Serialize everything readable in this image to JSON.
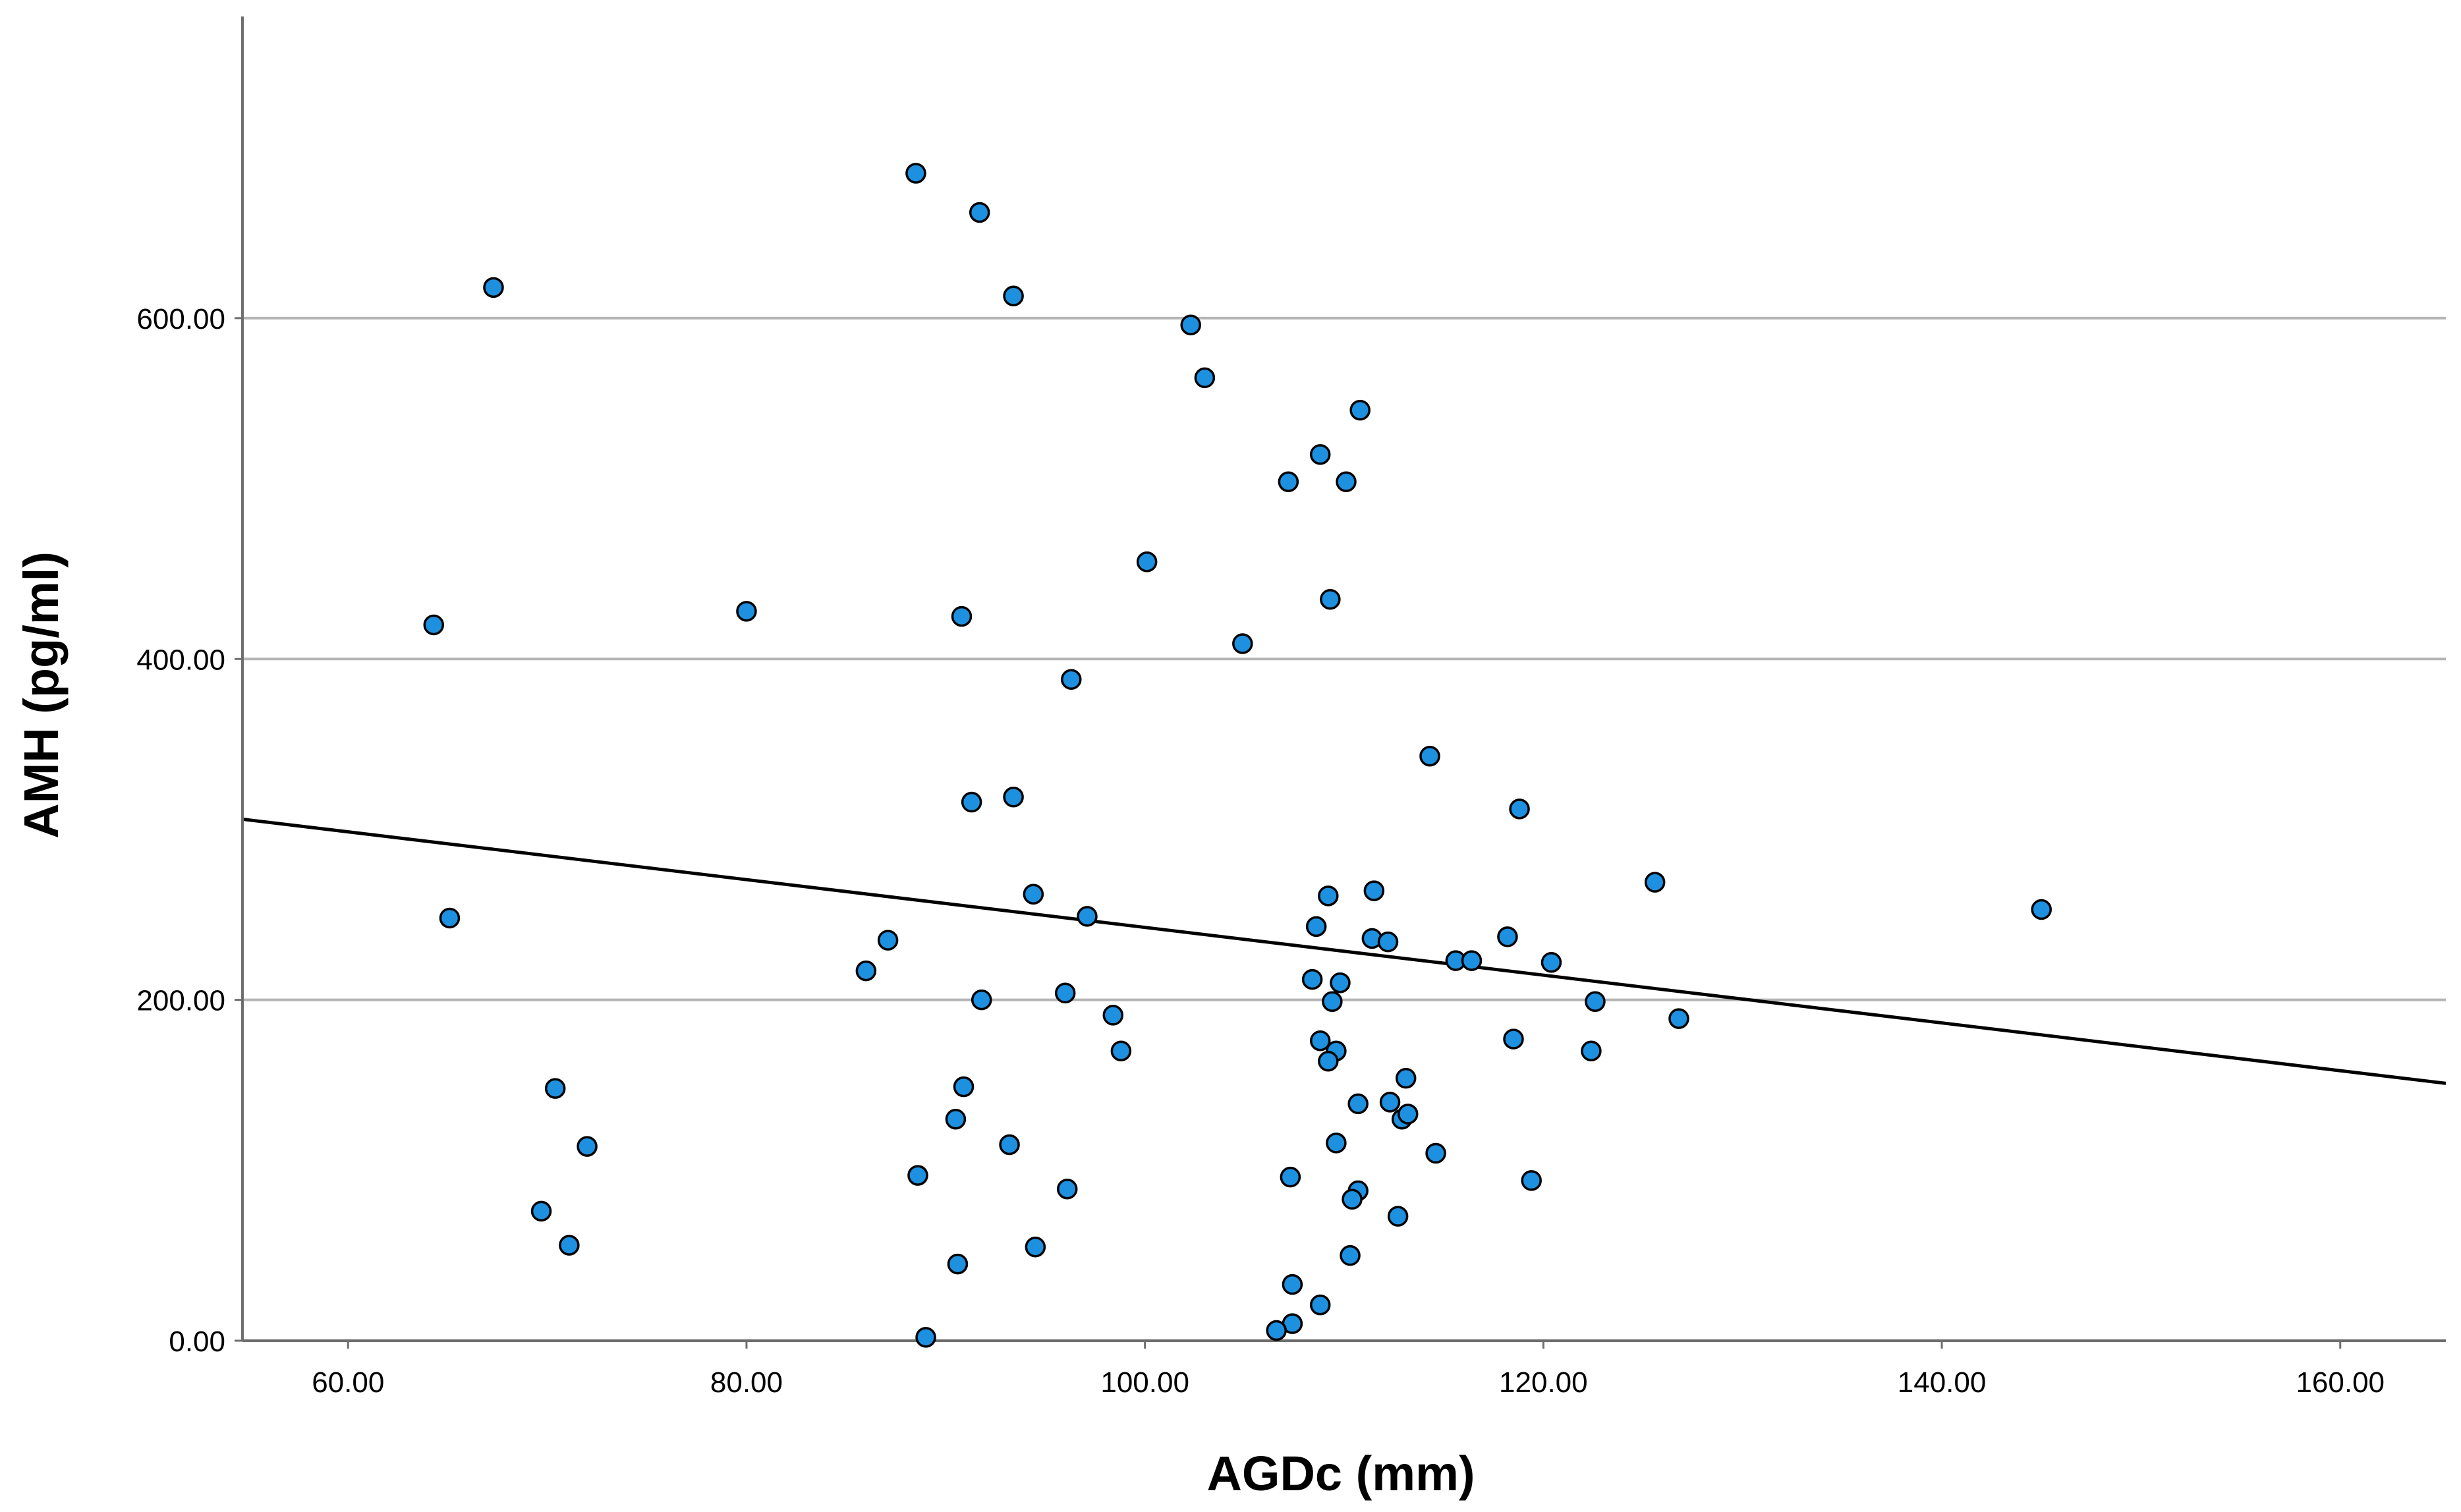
{
  "chart_data": {
    "type": "scatter",
    "title": "",
    "xlabel": "AGDc (mm)",
    "ylabel": "AMH (pg/ml)",
    "xlim": [
      54.7,
      165.3
    ],
    "ylim": [
      0,
      777
    ],
    "xticks": [
      60,
      80,
      100,
      120,
      140,
      160
    ],
    "xtick_labels": [
      "60.00",
      "80.00",
      "100.00",
      "120.00",
      "140.00",
      "160.00"
    ],
    "yticks": [
      0,
      200,
      400,
      600
    ],
    "ytick_labels": [
      "0.00",
      "200.00",
      "400.00",
      "600.00"
    ],
    "grid": "horizontal",
    "marker_color": "#1E90E0",
    "fit_line": {
      "type": "linear",
      "x": [
        54.7,
        165.3
      ],
      "y": [
        306,
        151
      ]
    },
    "series": [
      {
        "name": "AGDc vs AMH",
        "x": [
          88.5,
          91.7,
          93.4,
          67.3,
          102.3,
          103.0,
          110.8,
          108.8,
          107.2,
          110.1,
          100.1,
          109.3,
          64.3,
          80.0,
          90.8,
          104.9,
          96.3,
          114.3,
          91.3,
          93.4,
          118.8,
          65.1,
          94.4,
          97.1,
          87.1,
          86.0,
          91.8,
          96.0,
          98.4,
          98.8,
          125.6,
          145.0,
          109.2,
          111.5,
          108.6,
          111.4,
          112.2,
          109.8,
          108.4,
          109.4,
          118.2,
          115.6,
          116.4,
          120.4,
          122.6,
          126.8,
          118.5,
          122.4,
          108.8,
          109.6,
          109.2,
          113.1,
          112.3,
          110.7,
          112.9,
          113.2,
          109.6,
          114.6,
          119.4,
          107.3,
          110.7,
          110.4,
          112.7,
          110.3,
          107.4,
          107.4,
          108.8,
          106.6,
          89.0,
          90.9,
          90.5,
          93.2,
          88.6,
          96.1,
          94.5,
          90.6,
          70.4,
          72.0,
          69.7,
          71.1
        ],
        "y": [
          685,
          662,
          613,
          618,
          596,
          565,
          546,
          520,
          504,
          504,
          457,
          435,
          420,
          428,
          425,
          409,
          388,
          343,
          316,
          319,
          312,
          248,
          262,
          249,
          235,
          217,
          200,
          204,
          191,
          170,
          269,
          253,
          261,
          264,
          243,
          236,
          234,
          210,
          212,
          199,
          237,
          223,
          223,
          222,
          199,
          189,
          177,
          170,
          176,
          170,
          164,
          154,
          140,
          139,
          130,
          133,
          116,
          110,
          94,
          96,
          88,
          83,
          73,
          50,
          33,
          10,
          21,
          6,
          2,
          149,
          130,
          115,
          97,
          89,
          55,
          45,
          148,
          114,
          76,
          56
        ]
      }
    ]
  }
}
